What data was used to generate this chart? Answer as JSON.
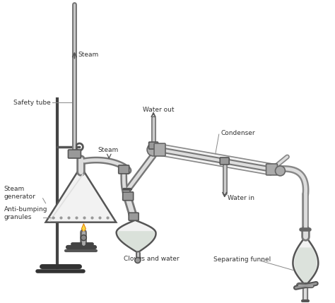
{
  "bg_color": "#ffffff",
  "dark": "#333333",
  "gray": "#888888",
  "tube_dark": "#666666",
  "tube_mid": "#aaaaaa",
  "tube_light": "#dddddd",
  "joint_fc": "#999999",
  "joint_ec": "#555555",
  "flask_fc": "#f2f2f2",
  "flask_ec": "#555555",
  "liquid_fc": "#c8d4c8",
  "figsize": [
    4.74,
    4.29
  ],
  "dpi": 100,
  "labels": {
    "steam_up": "Steam",
    "safety_tube": "Safety tube",
    "steam_gen": "Steam\ngenerator",
    "anti_bump": "Anti-bumping\ngranules",
    "steam2": "Steam",
    "cloves": "Cloves and water",
    "water_out": "Water out",
    "condenser": "Condenser",
    "water_in": "Water in",
    "sep_funnel": "Separating funnel"
  }
}
